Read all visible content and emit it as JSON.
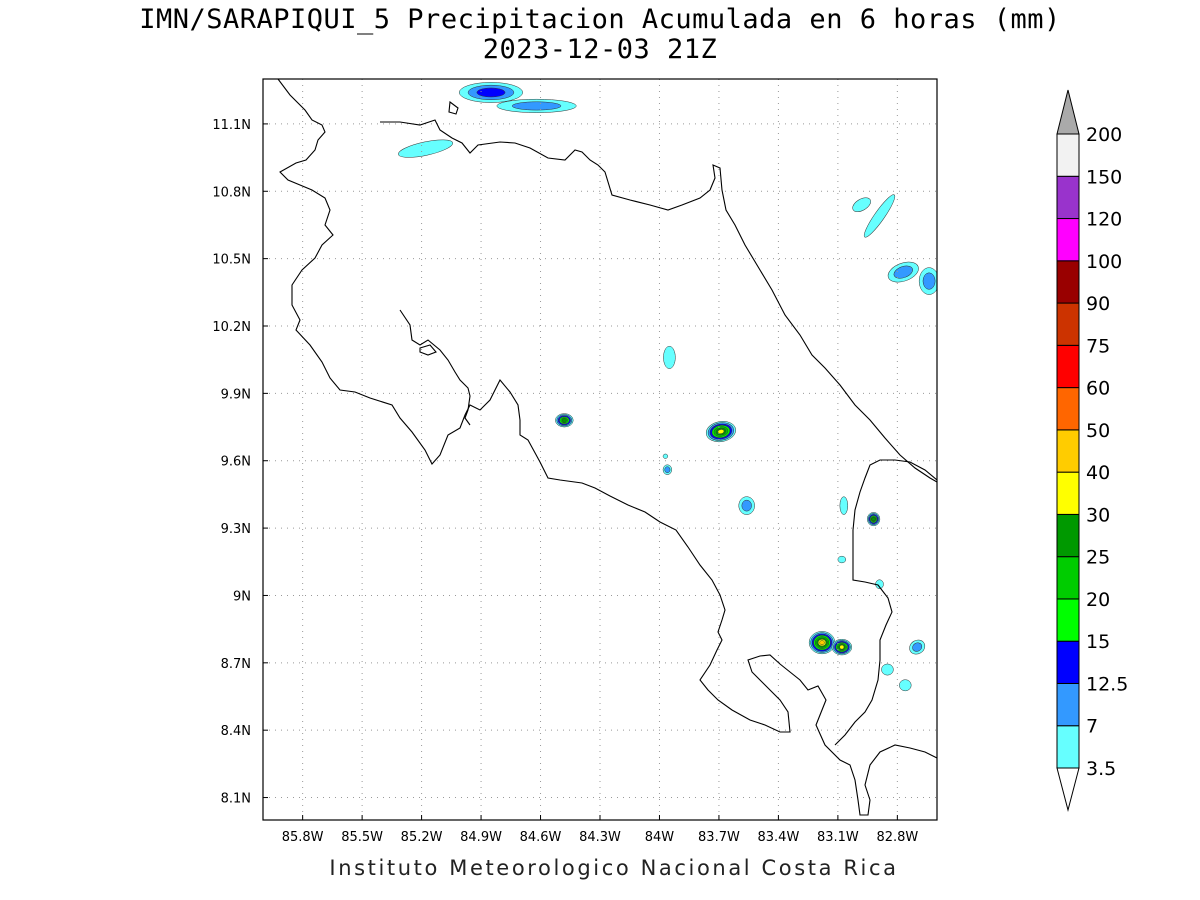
{
  "title_line1": "IMN/SARAPIQUI_5 Precipitacion Acumulada en 6 horas (mm)",
  "title_line2": "2023-12-03 21Z",
  "footer": "Instituto Meteorologico Nacional Costa Rica",
  "map": {
    "lon_range": [
      -86.0,
      -82.6
    ],
    "lat_range": [
      8.0,
      11.3
    ],
    "lon_ticks": [
      -85.8,
      -85.5,
      -85.2,
      -84.9,
      -84.6,
      -84.3,
      -84.0,
      -83.7,
      -83.4,
      -83.1,
      -82.8
    ],
    "lat_ticks": [
      8.1,
      8.4,
      8.7,
      9.0,
      9.3,
      9.6,
      9.9,
      10.2,
      10.5,
      10.8,
      11.1
    ],
    "lon_labels": [
      "85.8W",
      "85.5W",
      "85.2W",
      "84.9W",
      "84.6W",
      "84.3W",
      "84W",
      "83.7W",
      "83.4W",
      "83.1W",
      "82.8W"
    ],
    "lat_labels": [
      "8.1N",
      "8.4N",
      "8.7N",
      "9N",
      "9.3N",
      "9.6N",
      "9.9N",
      "10.2N",
      "10.5N",
      "10.8N",
      "11.1N"
    ],
    "grid": true
  },
  "colorbar": {
    "labels": [
      "3.5",
      "7",
      "12.5",
      "15",
      "20",
      "25",
      "30",
      "40",
      "50",
      "60",
      "75",
      "90",
      "100",
      "120",
      "150",
      "200"
    ],
    "colors": [
      "#66ffff",
      "#3399ff",
      "#0000ff",
      "#00ff00",
      "#00cc00",
      "#009900",
      "#ffff00",
      "#ffcc00",
      "#ff6600",
      "#ff0000",
      "#cc3300",
      "#990000",
      "#ff00ff",
      "#9933cc",
      "#f2f2f2",
      "#aaaaaa"
    ]
  },
  "precip_cells": [
    {
      "lon": -84.85,
      "lat": 11.24,
      "rx": 0.16,
      "ry": 0.045,
      "rot": 0,
      "max": 12.5
    },
    {
      "lon": -84.62,
      "lat": 11.18,
      "rx": 0.2,
      "ry": 0.03,
      "rot": 0,
      "max": 7
    },
    {
      "lon": -85.18,
      "lat": 10.99,
      "rx": 0.14,
      "ry": 0.03,
      "rot": -12,
      "max": 3.5
    },
    {
      "lon": -82.89,
      "lat": 10.69,
      "rx": 0.13,
      "ry": 0.022,
      "rot": -55,
      "max": 3.5
    },
    {
      "lon": -82.98,
      "lat": 10.74,
      "rx": 0.05,
      "ry": 0.025,
      "rot": -30,
      "max": 3.5
    },
    {
      "lon": -82.77,
      "lat": 10.44,
      "rx": 0.08,
      "ry": 0.04,
      "rot": -20,
      "max": 7
    },
    {
      "lon": -82.64,
      "lat": 10.4,
      "rx": 0.05,
      "ry": 0.06,
      "rot": 0,
      "max": 7
    },
    {
      "lon": -83.95,
      "lat": 10.06,
      "rx": 0.03,
      "ry": 0.05,
      "rot": 0,
      "max": 3.5
    },
    {
      "lon": -84.48,
      "lat": 9.78,
      "rx": 0.045,
      "ry": 0.03,
      "rot": 0,
      "max": 25
    },
    {
      "lon": -83.69,
      "lat": 9.73,
      "rx": 0.075,
      "ry": 0.045,
      "rot": -10,
      "max": 30
    },
    {
      "lon": -83.56,
      "lat": 9.4,
      "rx": 0.04,
      "ry": 0.04,
      "rot": 0,
      "max": 7
    },
    {
      "lon": -83.96,
      "lat": 9.56,
      "rx": 0.022,
      "ry": 0.022,
      "rot": 0,
      "max": 7
    },
    {
      "lon": -82.92,
      "lat": 9.34,
      "rx": 0.032,
      "ry": 0.03,
      "rot": 0,
      "max": 25
    },
    {
      "lon": -83.07,
      "lat": 9.4,
      "rx": 0.02,
      "ry": 0.04,
      "rot": 0,
      "max": 3.5
    },
    {
      "lon": -83.18,
      "lat": 8.79,
      "rx": 0.065,
      "ry": 0.05,
      "rot": 0,
      "max": 40
    },
    {
      "lon": -83.08,
      "lat": 8.77,
      "rx": 0.05,
      "ry": 0.035,
      "rot": 0,
      "max": 30
    },
    {
      "lon": -82.7,
      "lat": 8.77,
      "rx": 0.04,
      "ry": 0.03,
      "rot": -30,
      "max": 7
    },
    {
      "lon": -82.76,
      "lat": 8.6,
      "rx": 0.03,
      "ry": 0.025,
      "rot": 0,
      "max": 3.5
    },
    {
      "lon": -82.85,
      "lat": 8.67,
      "rx": 0.03,
      "ry": 0.025,
      "rot": 0,
      "max": 3.5
    },
    {
      "lon": -82.89,
      "lat": 9.05,
      "rx": 0.02,
      "ry": 0.02,
      "rot": 0,
      "max": 3.5
    },
    {
      "lon": -83.08,
      "lat": 9.16,
      "rx": 0.02,
      "ry": 0.015,
      "rot": 0,
      "max": 3.5
    },
    {
      "lon": -83.97,
      "lat": 9.62,
      "rx": 0.012,
      "ry": 0.01,
      "rot": 0,
      "max": 3.5
    }
  ]
}
